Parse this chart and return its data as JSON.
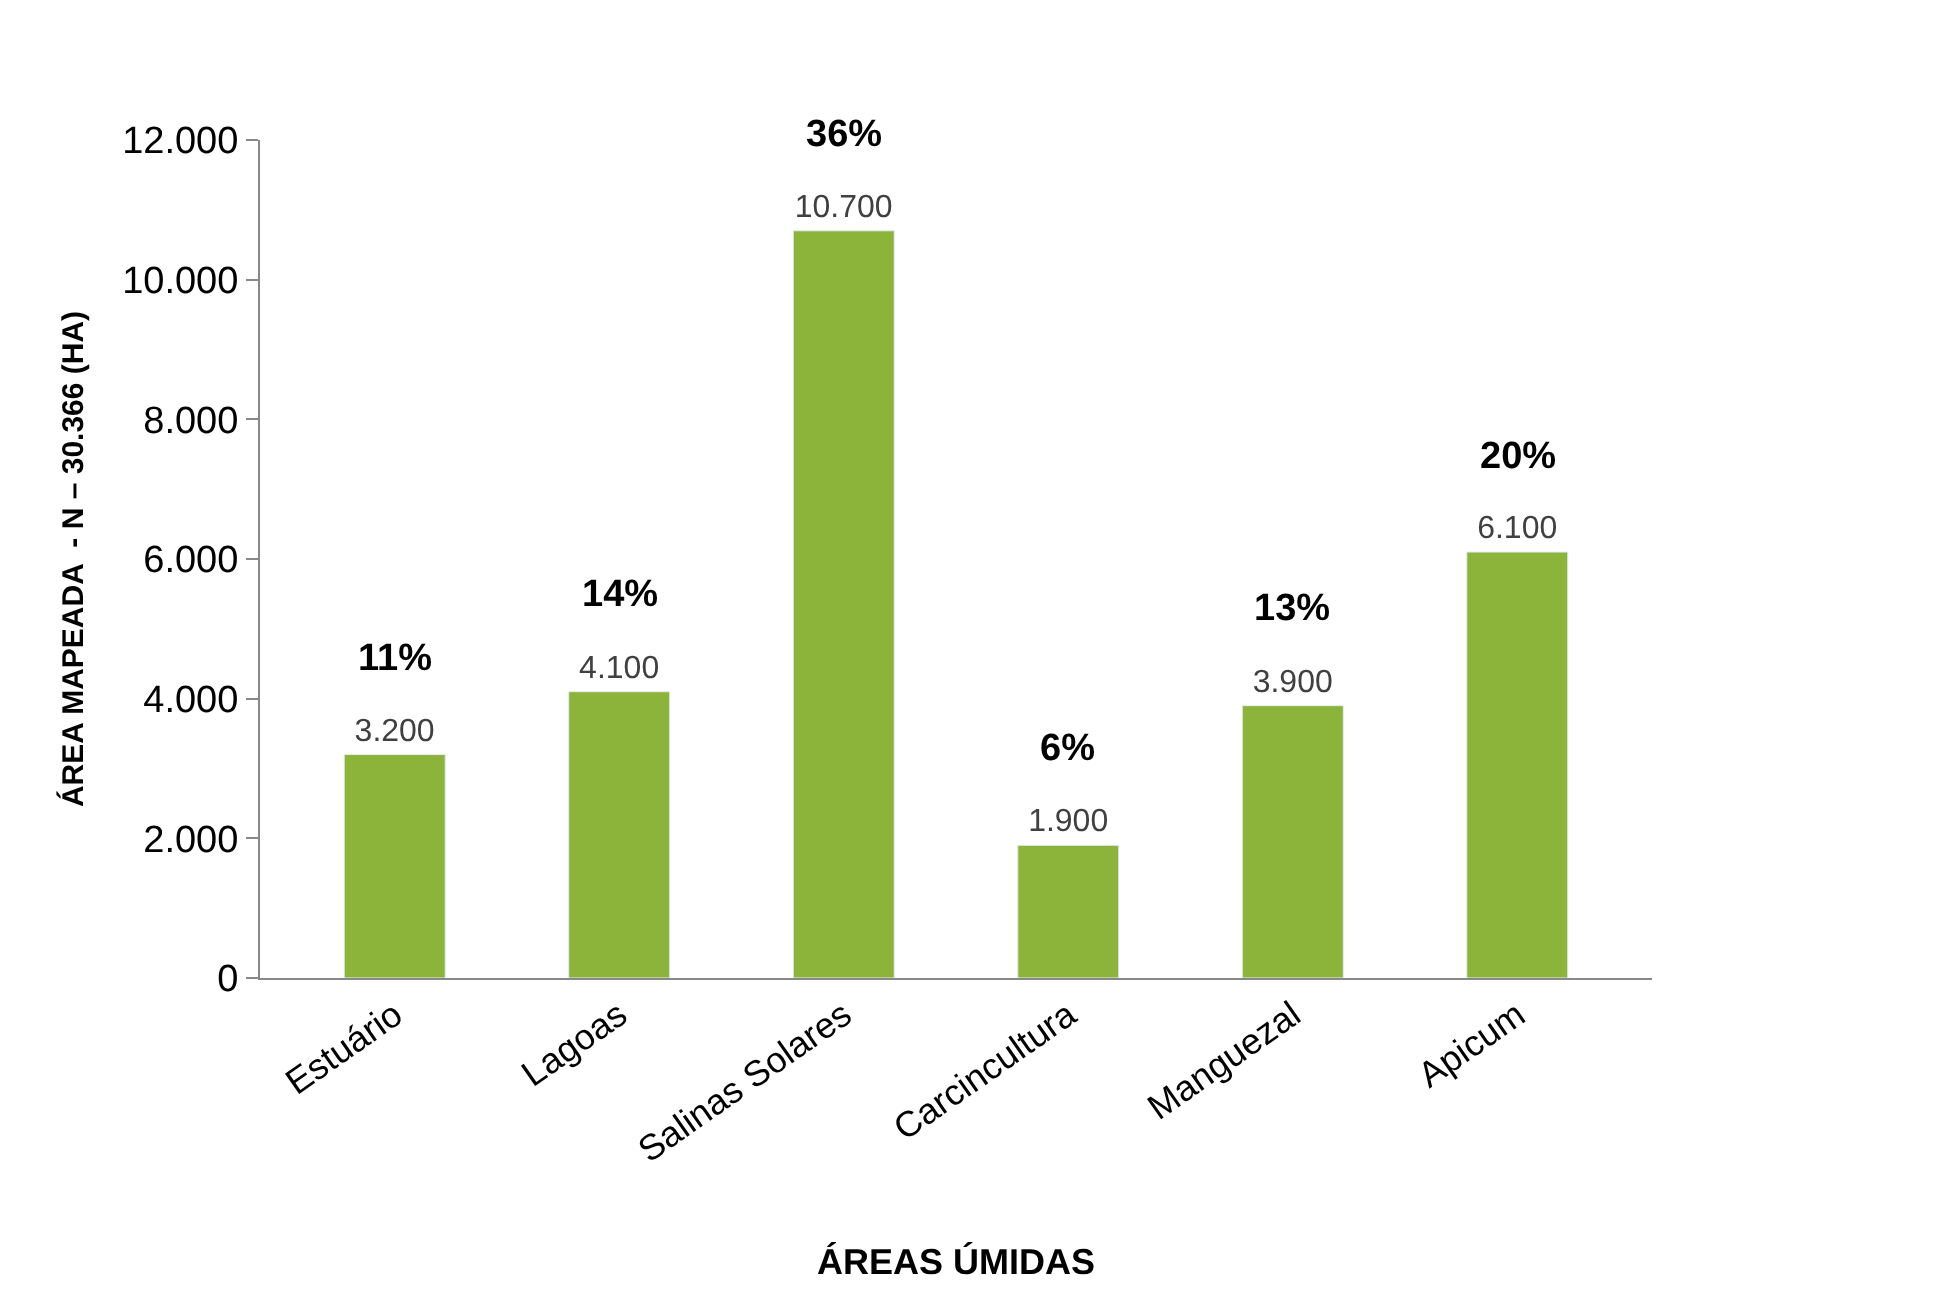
{
  "chart_data": {
    "type": "bar",
    "xlabel": "ÁREAS ÚMIDAS",
    "ylabel": "ÁREA MAPEADA  - N – 30.366 (HA)",
    "categories": [
      "Estuário",
      "Lagoas",
      "Salinas Solares",
      "Carcincultura",
      "Manguezal",
      "Apicum"
    ],
    "values": [
      3200,
      4100,
      10700,
      1900,
      3900,
      6100
    ],
    "value_labels": [
      "3.200",
      "4.100",
      "10.700",
      "1.900",
      "3.900",
      "6.100"
    ],
    "color": "#8db43a",
    "ylim": [
      0,
      12000
    ],
    "yticks": [
      0,
      {
        "value": 2000,
        "label": "2.000"
      },
      {
        "value": 4000,
        "label": "4.000"
      },
      {
        "value": 6000,
        "label": "6.000"
      },
      {
        "value": 8000,
        "label": "8.000"
      },
      {
        "value": 10000,
        "label": "10.000"
      },
      {
        "value": 12000,
        "label": "12.000"
      }
    ],
    "annotations": [
      {
        "text": "11%",
        "x": "Estuário",
        "y": 3200
      },
      {
        "text": "14%",
        "x": "Lagoas",
        "y": 4100
      },
      {
        "text": "36%",
        "x": "Salinas Solares",
        "y": 10700
      },
      {
        "text": "6%",
        "x": "Carcincultura",
        "y": 1900
      },
      {
        "text": "13%",
        "x": "Manguezal",
        "y": 3900
      },
      {
        "text": "20%",
        "x": "Apicum",
        "y": 6100
      }
    ],
    "marker": "none"
  }
}
